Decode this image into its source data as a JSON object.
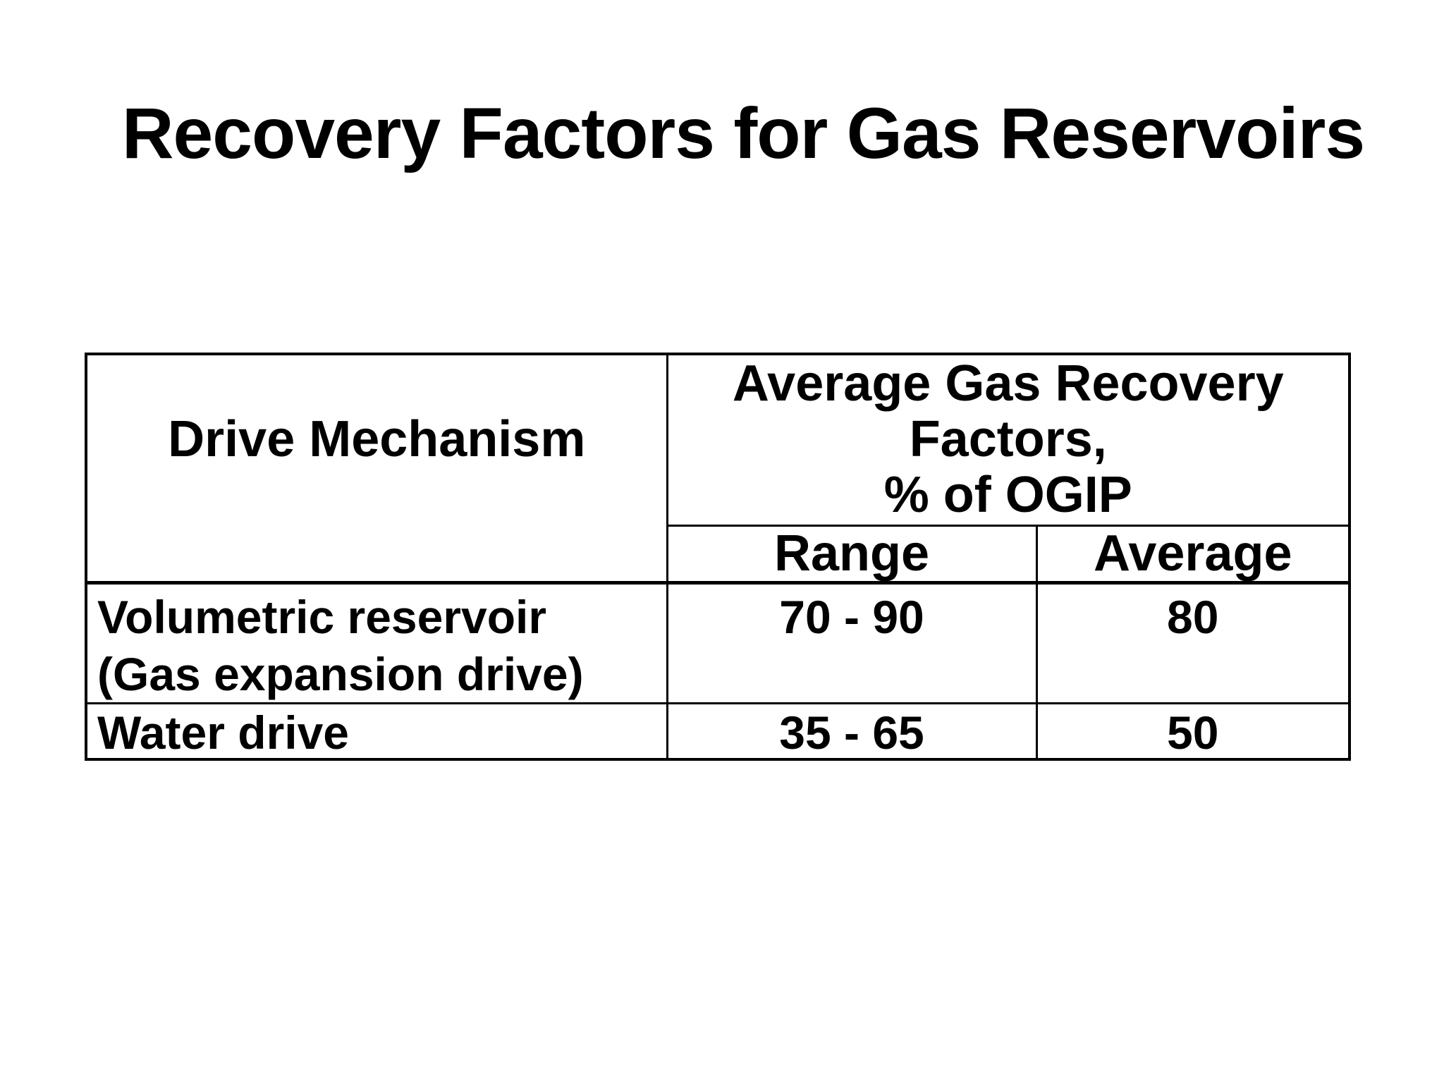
{
  "slide": {
    "title": "Recovery Factors for Gas Reservoirs",
    "background_color": "#ffffff",
    "text_color": "#000000",
    "table_border_color": "#000000"
  },
  "table": {
    "header": {
      "drive_mechanism": "Drive Mechanism",
      "avg_group_lines": [
        "Average Gas Recovery",
        "Factors,",
        "% of OGIP"
      ],
      "range": "Range",
      "average": "Average"
    },
    "rows": [
      {
        "mechanism": [
          "Volumetric reservoir",
          "(Gas expansion drive)"
        ],
        "range": "70 - 90",
        "average": "80"
      },
      {
        "mechanism": [
          "Water drive"
        ],
        "range": "35 - 65",
        "average": "50"
      }
    ]
  }
}
